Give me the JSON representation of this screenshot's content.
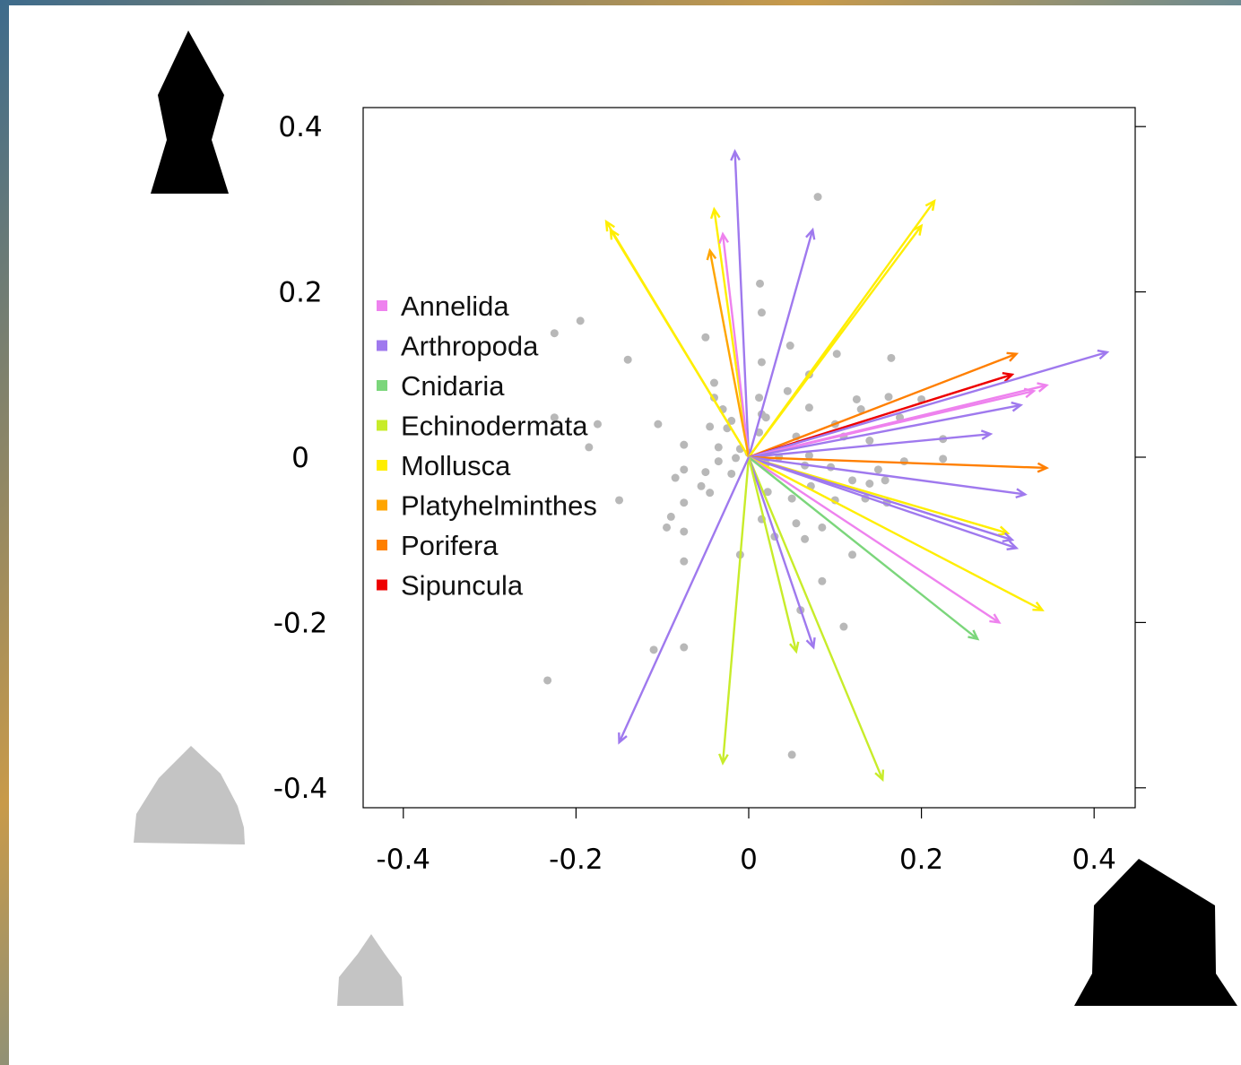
{
  "chart_data": {
    "type": "scatter",
    "title": "",
    "xlabel": "",
    "ylabel": "",
    "xlim": [
      -0.44,
      0.45
    ],
    "ylim": [
      -0.42,
      0.42
    ],
    "x_ticks": [
      "-0.4",
      "-0.2",
      "0",
      "0.2",
      "0.4"
    ],
    "y_ticks": [
      "0.4",
      "0.2",
      "0",
      "-0.2",
      "-0.4"
    ],
    "legend_position": "left",
    "legend": [
      {
        "name": "Annelida",
        "color": "#ee82ee"
      },
      {
        "name": "Arthropoda",
        "color": "#9f79ee"
      },
      {
        "name": "Cnidaria",
        "color": "#7bd67b"
      },
      {
        "name": "Echinodermata",
        "color": "#c8ec2a"
      },
      {
        "name": "Mollusca",
        "color": "#ffee00"
      },
      {
        "name": "Platyhelminthes",
        "color": "#ffa500"
      },
      {
        "name": "Porifera",
        "color": "#ff7f00"
      },
      {
        "name": "Sipuncula",
        "color": "#ee0000"
      }
    ],
    "vectors": [
      {
        "group": "Arthropoda",
        "x": -0.016,
        "y": 0.37
      },
      {
        "group": "Mollusca",
        "x": -0.165,
        "y": 0.285
      },
      {
        "group": "Mollusca",
        "x": -0.16,
        "y": 0.275
      },
      {
        "group": "Mollusca",
        "x": -0.04,
        "y": 0.3
      },
      {
        "group": "Annelida",
        "x": -0.03,
        "y": 0.27
      },
      {
        "group": "Platyhelminthes",
        "x": -0.045,
        "y": 0.25
      },
      {
        "group": "Arthropoda",
        "x": 0.074,
        "y": 0.275
      },
      {
        "group": "Mollusca",
        "x": 0.215,
        "y": 0.31
      },
      {
        "group": "Mollusca",
        "x": 0.2,
        "y": 0.28
      },
      {
        "group": "Porifera",
        "x": 0.31,
        "y": 0.125
      },
      {
        "group": "Sipuncula",
        "x": 0.305,
        "y": 0.1
      },
      {
        "group": "Arthropoda",
        "x": 0.415,
        "y": 0.127
      },
      {
        "group": "Annelida",
        "x": 0.345,
        "y": 0.087
      },
      {
        "group": "Annelida",
        "x": 0.33,
        "y": 0.08
      },
      {
        "group": "Arthropoda",
        "x": 0.315,
        "y": 0.063
      },
      {
        "group": "Arthropoda",
        "x": 0.28,
        "y": 0.028
      },
      {
        "group": "Porifera",
        "x": 0.345,
        "y": -0.013
      },
      {
        "group": "Arthropoda",
        "x": 0.32,
        "y": -0.045
      },
      {
        "group": "Mollusca",
        "x": 0.3,
        "y": -0.092
      },
      {
        "group": "Arthropoda",
        "x": 0.305,
        "y": -0.1
      },
      {
        "group": "Arthropoda",
        "x": 0.31,
        "y": -0.11
      },
      {
        "group": "Mollusca",
        "x": 0.34,
        "y": -0.185
      },
      {
        "group": "Annelida",
        "x": 0.29,
        "y": -0.2
      },
      {
        "group": "Cnidaria",
        "x": 0.265,
        "y": -0.22
      },
      {
        "group": "Echinodermata",
        "x": 0.155,
        "y": -0.39
      },
      {
        "group": "Arthropoda",
        "x": 0.075,
        "y": -0.23
      },
      {
        "group": "Echinodermata",
        "x": 0.055,
        "y": -0.235
      },
      {
        "group": "Echinodermata",
        "x": -0.03,
        "y": -0.37
      },
      {
        "group": "Arthropoda",
        "x": -0.15,
        "y": -0.345
      }
    ],
    "points": [
      [
        0.08,
        0.315
      ],
      [
        0.013,
        0.21
      ],
      [
        0.015,
        0.175
      ],
      [
        -0.195,
        0.165
      ],
      [
        -0.225,
        0.15
      ],
      [
        -0.05,
        0.145
      ],
      [
        0.048,
        0.135
      ],
      [
        0.102,
        0.125
      ],
      [
        -0.14,
        0.118
      ],
      [
        0.015,
        0.115
      ],
      [
        0.165,
        0.12
      ],
      [
        0.07,
        0.1
      ],
      [
        -0.04,
        0.09
      ],
      [
        0.045,
        0.08
      ],
      [
        -0.04,
        0.072
      ],
      [
        0.012,
        0.072
      ],
      [
        0.125,
        0.07
      ],
      [
        0.162,
        0.073
      ],
      [
        0.2,
        0.07
      ],
      [
        -0.03,
        0.058
      ],
      [
        0.015,
        0.052
      ],
      [
        0.07,
        0.06
      ],
      [
        0.13,
        0.058
      ],
      [
        0.02,
        0.048
      ],
      [
        0.175,
        0.048
      ],
      [
        -0.02,
        0.044
      ],
      [
        0.1,
        0.04
      ],
      [
        -0.225,
        0.048
      ],
      [
        -0.175,
        0.04
      ],
      [
        -0.105,
        0.04
      ],
      [
        -0.025,
        0.035
      ],
      [
        -0.045,
        0.037
      ],
      [
        0.012,
        0.03
      ],
      [
        0.055,
        0.025
      ],
      [
        0.11,
        0.025
      ],
      [
        0.14,
        0.02
      ],
      [
        0.225,
        0.022
      ],
      [
        -0.185,
        0.012
      ],
      [
        -0.075,
        0.015
      ],
      [
        -0.035,
        0.012
      ],
      [
        -0.01,
        0.01
      ],
      [
        0.0,
        0.005
      ],
      [
        0.035,
        0.0
      ],
      [
        0.07,
        0.002
      ],
      [
        0.18,
        -0.005
      ],
      [
        0.225,
        -0.002
      ],
      [
        -0.015,
        -0.001
      ],
      [
        -0.035,
        -0.005
      ],
      [
        0.02,
        -0.008
      ],
      [
        0.065,
        -0.01
      ],
      [
        0.095,
        -0.012
      ],
      [
        0.15,
        -0.015
      ],
      [
        -0.05,
        -0.018
      ],
      [
        -0.075,
        -0.015
      ],
      [
        -0.02,
        -0.02
      ],
      [
        0.12,
        -0.028
      ],
      [
        0.14,
        -0.032
      ],
      [
        0.158,
        -0.028
      ],
      [
        -0.085,
        -0.025
      ],
      [
        -0.055,
        -0.035
      ],
      [
        0.072,
        -0.035
      ],
      [
        -0.045,
        -0.043
      ],
      [
        0.022,
        -0.042
      ],
      [
        0.05,
        -0.05
      ],
      [
        -0.075,
        -0.055
      ],
      [
        -0.15,
        -0.052
      ],
      [
        0.1,
        -0.052
      ],
      [
        0.135,
        -0.05
      ],
      [
        0.16,
        -0.055
      ],
      [
        -0.09,
        -0.072
      ],
      [
        0.015,
        -0.075
      ],
      [
        0.055,
        -0.08
      ],
      [
        0.085,
        -0.085
      ],
      [
        -0.095,
        -0.085
      ],
      [
        -0.075,
        -0.09
      ],
      [
        0.03,
        -0.096
      ],
      [
        0.065,
        -0.099
      ],
      [
        0.12,
        -0.118
      ],
      [
        -0.075,
        -0.126
      ],
      [
        -0.01,
        -0.118
      ],
      [
        0.085,
        -0.15
      ],
      [
        0.11,
        -0.205
      ],
      [
        -0.11,
        -0.233
      ],
      [
        -0.075,
        -0.23
      ],
      [
        0.05,
        -0.36
      ],
      [
        -0.233,
        -0.27
      ],
      [
        0.06,
        -0.185
      ]
    ]
  },
  "decor": {
    "top_left_glyph": "black-spire-shape",
    "bottom_left_glyph": "grey-mound-shape",
    "bottom_small_glyph": "small-grey-mound-shape",
    "bottom_right_glyph": "black-house-shape"
  }
}
